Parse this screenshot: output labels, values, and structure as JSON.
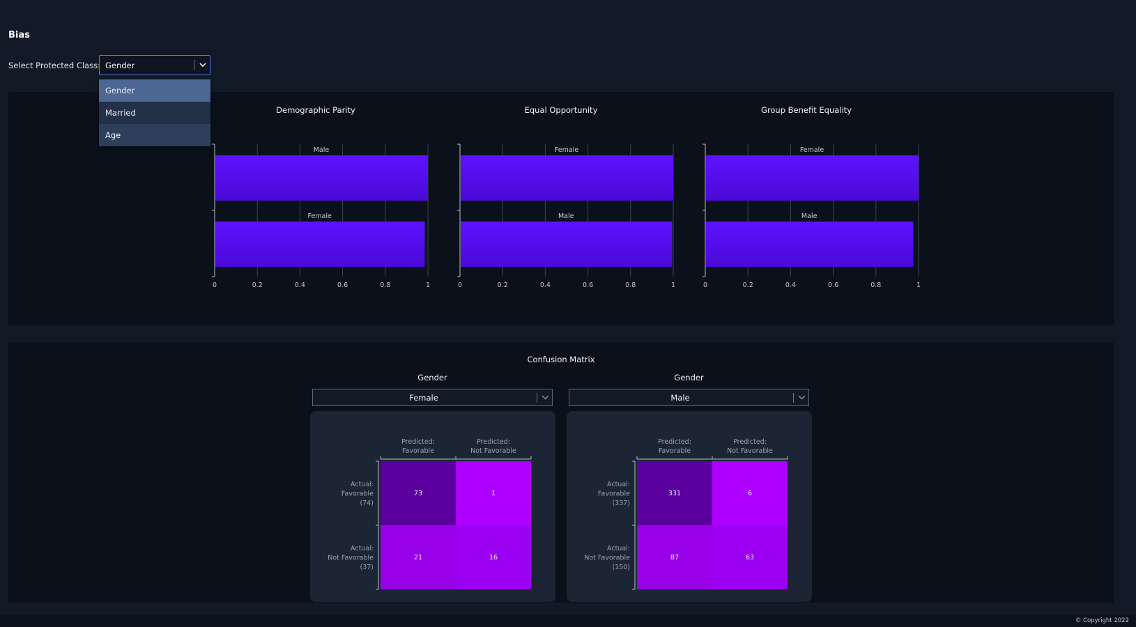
{
  "page": {
    "title": "Bias"
  },
  "protected_class": {
    "label": "Select Protected Class:",
    "selected": "Gender",
    "options": [
      "Gender",
      "Married",
      "Age"
    ]
  },
  "chart_data": [
    {
      "type": "bar",
      "orientation": "horizontal",
      "title": "Demographic Parity",
      "categories": [
        "Male",
        "Female"
      ],
      "values": [
        1.0,
        0.985
      ],
      "xlim": [
        0,
        1
      ],
      "xticks": [
        "0",
        "0.2",
        "0.4",
        "0.6",
        "0.8",
        "1"
      ],
      "color": "#5b10ff"
    },
    {
      "type": "bar",
      "orientation": "horizontal",
      "title": "Equal Opportunity",
      "categories": [
        "Female",
        "Male"
      ],
      "values": [
        1.0,
        0.995
      ],
      "xlim": [
        0,
        1
      ],
      "xticks": [
        "0",
        "0.2",
        "0.4",
        "0.6",
        "0.8",
        "1"
      ],
      "color": "#5b10ff"
    },
    {
      "type": "bar",
      "orientation": "horizontal",
      "title": "Group Benefit Equality",
      "categories": [
        "Female",
        "Male"
      ],
      "values": [
        1.0,
        0.975
      ],
      "xlim": [
        0,
        1
      ],
      "xticks": [
        "0",
        "0.2",
        "0.4",
        "0.6",
        "0.8",
        "1"
      ],
      "color": "#5b10ff"
    },
    {
      "type": "heatmap",
      "title": "Confusion Matrix",
      "group_label": "Gender",
      "selected": "Female",
      "columns": [
        "Predicted:\nFavorable",
        "Predicted:\nNot Favorable"
      ],
      "rows": [
        "Actual:\nFavorable\n(74)",
        "Actual:\nNot Favorable\n(37)"
      ],
      "values": [
        [
          73,
          1
        ],
        [
          21,
          16
        ]
      ],
      "colors": [
        [
          "#5b009e",
          "#ad00ff"
        ],
        [
          "#9800ea",
          "#9c00f0"
        ]
      ]
    },
    {
      "type": "heatmap",
      "title": "Confusion Matrix",
      "group_label": "Gender",
      "selected": "Male",
      "columns": [
        "Predicted:\nFavorable",
        "Predicted:\nNot Favorable"
      ],
      "rows": [
        "Actual:\nFavorable\n(337)",
        "Actual:\nNot Favorable\n(150)"
      ],
      "values": [
        [
          331,
          6
        ],
        [
          87,
          63
        ]
      ],
      "colors": [
        [
          "#5b009e",
          "#ad00ff"
        ],
        [
          "#9800ea",
          "#9c00f0"
        ]
      ]
    }
  ],
  "confusion": {
    "title": "Confusion Matrix"
  },
  "footer": {
    "copyright": "© Copyright 2022"
  },
  "icons": {
    "chevron": "chevron-down-icon"
  }
}
